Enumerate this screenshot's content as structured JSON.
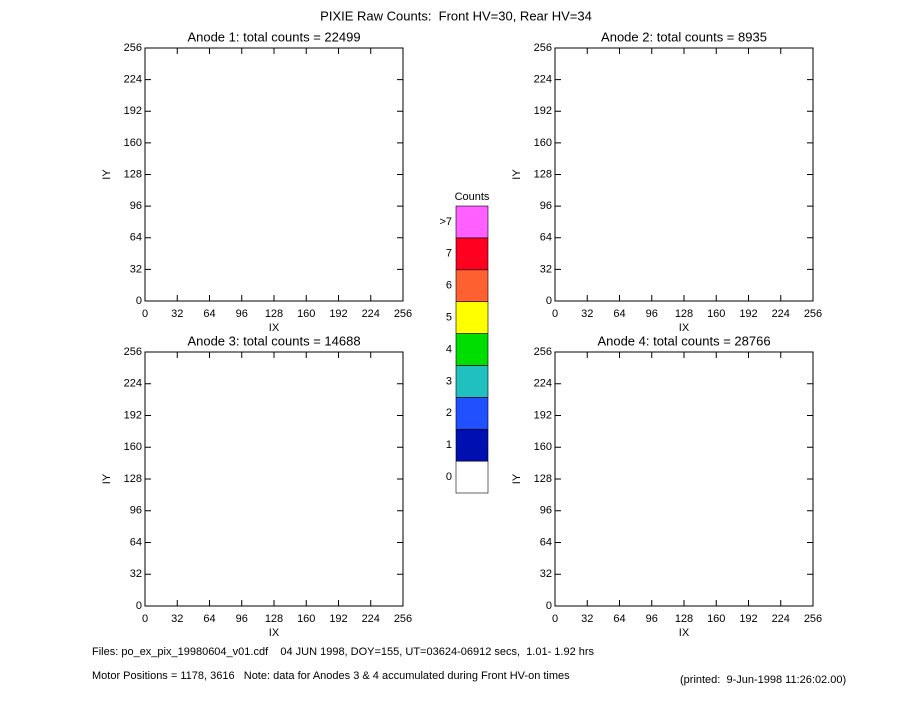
{
  "title": "PIXIE Raw Counts:  Front HV=30, Rear HV=34",
  "chart_data": [
    {
      "type": "heatmap",
      "title": "Anode 1: total counts = 22499",
      "x_label": "IX",
      "y_label": "IY",
      "xlim": [
        0,
        256
      ],
      "ylim": [
        0,
        256
      ],
      "xticks": [
        0,
        32,
        64,
        96,
        128,
        160,
        192,
        224,
        256
      ],
      "yticks": [
        0,
        32,
        64,
        96,
        128,
        160,
        192,
        224,
        256
      ]
    },
    {
      "type": "heatmap",
      "title": "Anode 2: total counts = 8935",
      "x_label": "IX",
      "y_label": "IY",
      "xlim": [
        0,
        256
      ],
      "ylim": [
        0,
        256
      ],
      "xticks": [
        0,
        32,
        64,
        96,
        128,
        160,
        192,
        224,
        256
      ],
      "yticks": [
        0,
        32,
        64,
        96,
        128,
        160,
        192,
        224,
        256
      ]
    },
    {
      "type": "heatmap",
      "title": "Anode 3: total counts = 14688",
      "x_label": "IX",
      "y_label": "IY",
      "xlim": [
        0,
        256
      ],
      "ylim": [
        0,
        256
      ],
      "xticks": [
        0,
        32,
        64,
        96,
        128,
        160,
        192,
        224,
        256
      ],
      "yticks": [
        0,
        32,
        64,
        96,
        128,
        160,
        192,
        224,
        256
      ]
    },
    {
      "type": "heatmap",
      "title": "Anode 4: total counts = 28766",
      "x_label": "IX",
      "y_label": "IY",
      "xlim": [
        0,
        256
      ],
      "ylim": [
        0,
        256
      ],
      "xticks": [
        0,
        32,
        64,
        96,
        128,
        160,
        192,
        224,
        256
      ],
      "yticks": [
        0,
        32,
        64,
        96,
        128,
        160,
        192,
        224,
        256
      ]
    }
  ],
  "colorbar": {
    "title": "Counts",
    "labels": [
      "0",
      "1",
      "2",
      "3",
      "4",
      "5",
      "6",
      "7",
      ">7"
    ],
    "colors": [
      "#ffffff",
      "#0010b0",
      "#2050ff",
      "#20c0c0",
      "#00dd00",
      "#ffff00",
      "#ff6030",
      "#ff0020",
      "#ff60ff"
    ]
  },
  "footer": {
    "files": "Files: po_ex_pix_19980604_v01.cdf    04 JUN 1998, DOY=155, UT=03624-06912 secs,  1.01- 1.92 hrs",
    "motor": "Motor Positions = 1178, 3616   Note: data for Anodes 3 & 4 accumulated during Front HV-on times",
    "printed": "(printed:  9-Jun-1998 11:26:02.00)"
  }
}
